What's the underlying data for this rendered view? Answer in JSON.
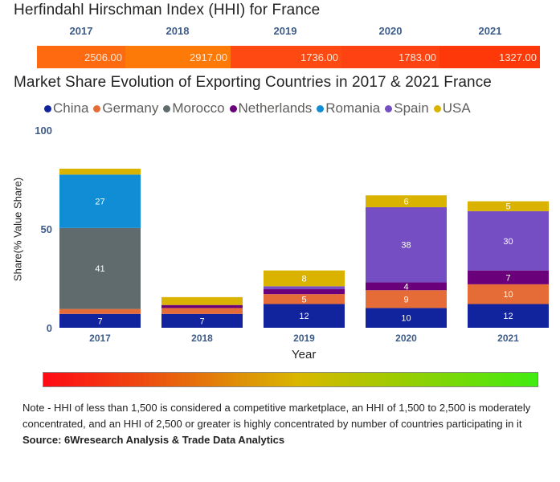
{
  "hhi": {
    "title": "Herfindahl Hirschman Index (HHI) for France",
    "years": [
      "2017",
      "2018",
      "2019",
      "2020",
      "2021"
    ],
    "values": [
      "2506.00",
      "2917.00",
      "1736.00",
      "1783.00",
      "1327.00"
    ],
    "colors": [
      "#fe6a10",
      "#fe7a08",
      "#fe4a12",
      "#fe4212",
      "#fe3808"
    ]
  },
  "market_share": {
    "title": "Market Share Evolution of Exporting Countries in 2017 & 2021 France",
    "x_axis_label": "Year",
    "y_axis_label": "Share(% Value Share)"
  },
  "chart_data": {
    "type": "bar",
    "stacked": true,
    "title": "Market Share Evolution of Exporting Countries in 2017 & 2021 France",
    "xlabel": "Year",
    "ylabel": "Share(% Value Share)",
    "ylim": [
      0,
      100
    ],
    "yticks": [
      "0",
      "50",
      "100"
    ],
    "categories": [
      "2017",
      "2018",
      "2019",
      "2020",
      "2021"
    ],
    "legend_position": "top",
    "series": [
      {
        "name": "China",
        "color": "#12239e",
        "values": [
          7,
          7,
          12,
          10,
          12
        ],
        "labels": [
          "7",
          "7",
          "12",
          "10",
          "12"
        ]
      },
      {
        "name": "Germany",
        "color": "#e66c37",
        "values": [
          2.5,
          3,
          5,
          9,
          10
        ],
        "labels": [
          "",
          "",
          "5",
          "9",
          "10"
        ]
      },
      {
        "name": "Morocco",
        "color": "#5f6b6d",
        "values": [
          41,
          0,
          0,
          0,
          0
        ],
        "labels": [
          "41",
          "",
          "",
          "",
          ""
        ]
      },
      {
        "name": "Netherlands",
        "color": "#6b007b",
        "values": [
          0,
          1.5,
          2.5,
          4,
          7
        ],
        "labels": [
          "",
          "",
          "",
          "4",
          "7"
        ]
      },
      {
        "name": "Romania",
        "color": "#118dd6",
        "values": [
          27,
          0,
          0,
          0,
          0
        ],
        "labels": [
          "27",
          "",
          "",
          "",
          ""
        ]
      },
      {
        "name": "Spain",
        "color": "#744ec2",
        "values": [
          0,
          0,
          1.5,
          38,
          30
        ],
        "labels": [
          "",
          "",
          "",
          "38",
          "30"
        ]
      },
      {
        "name": "USA",
        "color": "#d9b300",
        "values": [
          3,
          4,
          8,
          6,
          5
        ],
        "labels": [
          "",
          "",
          "8",
          "6",
          "5"
        ]
      }
    ]
  },
  "gradient_legend": {
    "from_color": "#ff0a14",
    "to_color": "#40ec10"
  },
  "note": {
    "line1": "Note - HHI of less than 1,500 is considered a competitive marketplace, an HHI of 1,500 to 2,500 is moderately",
    "line2": "concentrated, and an HHI of 2,500 or greater is highly concentrated by number of countries participating in it",
    "source": "Source: 6Wresearch Analysis & Trade Data Analytics"
  }
}
